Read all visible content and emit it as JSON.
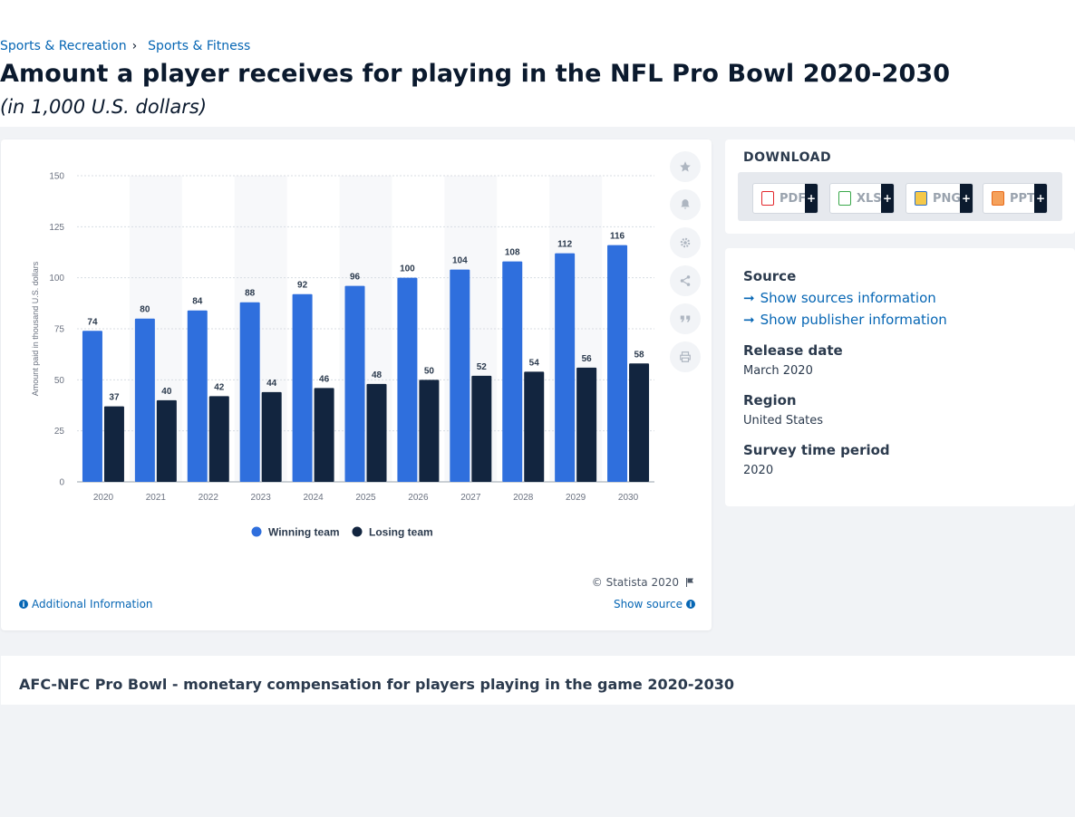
{
  "breadcrumb": {
    "item1": "Sports & Recreation",
    "separator": "›",
    "item2": "Sports & Fitness"
  },
  "title": "Amount a player receives for playing in the NFL Pro Bowl 2020-2030",
  "subtitle": "(in 1,000 U.S. dollars)",
  "toolbar": {
    "icons": [
      "star-icon",
      "bell-icon",
      "gear-icon",
      "share-icon",
      "quote-icon",
      "print-icon"
    ]
  },
  "footer": {
    "copyright": "© Statista 2020",
    "additional_info": "Additional Information",
    "show_source": "Show source"
  },
  "download": {
    "title": "DOWNLOAD",
    "formats": [
      {
        "label": "PDF",
        "color": "#e3262b"
      },
      {
        "label": "XLS",
        "color": "#3aa84a"
      },
      {
        "label": "PNG",
        "color": "#2b6fcf"
      },
      {
        "label": "PPT",
        "color": "#e86a1a"
      }
    ],
    "plus": "+"
  },
  "meta": {
    "source_label": "Source",
    "show_sources": "Show sources information",
    "show_publisher": "Show publisher information",
    "release_label": "Release date",
    "release_value": "March 2020",
    "region_label": "Region",
    "region_value": "United States",
    "survey_label": "Survey time period",
    "survey_value": "2020"
  },
  "related": {
    "title": "AFC-NFC Pro Bowl - monetary compensation for players playing in the game 2020-2030"
  },
  "colors": {
    "winning": "#2f6fdd",
    "losing": "#12253f",
    "link": "#0666b4"
  },
  "chart_data": {
    "type": "bar",
    "categories": [
      "2020",
      "2021",
      "2022",
      "2023",
      "2024",
      "2025",
      "2026",
      "2027",
      "2028",
      "2029",
      "2030"
    ],
    "series": [
      {
        "name": "Winning team",
        "values": [
          74,
          80,
          84,
          88,
          92,
          96,
          100,
          104,
          108,
          112,
          116
        ]
      },
      {
        "name": "Losing team",
        "values": [
          37,
          40,
          42,
          44,
          46,
          48,
          50,
          52,
          54,
          56,
          58
        ]
      }
    ],
    "ylabel": "Amount paid in thousand U.S. dollars",
    "ylim": [
      0,
      150
    ],
    "yticks": [
      0,
      25,
      50,
      75,
      100,
      125,
      150
    ],
    "grid": true,
    "legend": "bottom"
  }
}
